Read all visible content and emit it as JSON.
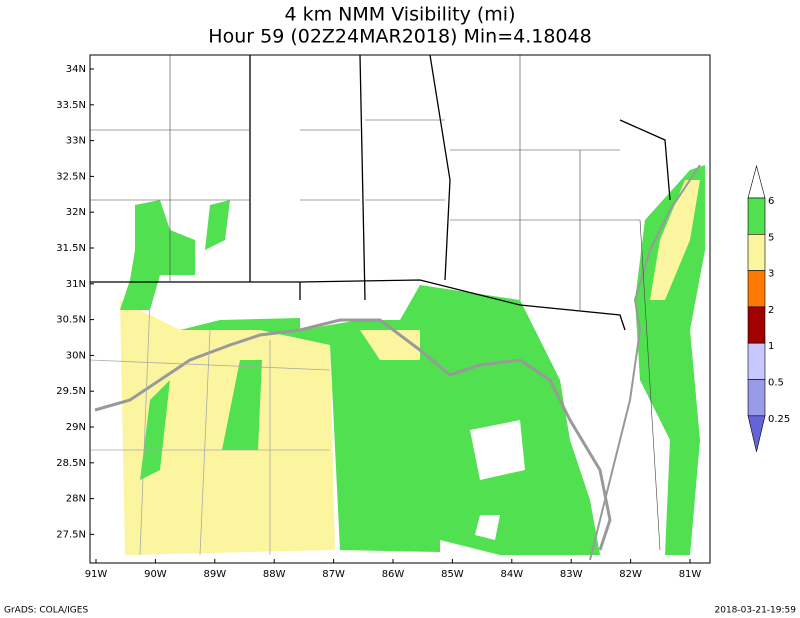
{
  "header": {
    "title": "4 km NMM Visibility (mi)",
    "subtitle": "Hour 59 (02Z24MAR2018) Min=4.18048"
  },
  "map": {
    "lat_labels": [
      "34N",
      "33.5N",
      "33N",
      "32.5N",
      "32N",
      "31.5N",
      "31N",
      "30.5N",
      "30N",
      "29.5N",
      "29N",
      "28.5N",
      "28N",
      "27.5N"
    ],
    "lon_labels": [
      "91W",
      "90W",
      "89W",
      "88W",
      "87W",
      "86W",
      "85W",
      "84W",
      "83W",
      "82W",
      "81W"
    ]
  },
  "legend": {
    "entries": [
      {
        "label": "6",
        "color": "#50e050"
      },
      {
        "label": "5",
        "color": "#fbf5a0"
      },
      {
        "label": "3",
        "color": "#ff7800"
      },
      {
        "label": "2",
        "color": "#a00000"
      },
      {
        "label": "1",
        "color": "#c8c8ff"
      },
      {
        "label": "0.5",
        "color": "#9a9aeb"
      },
      {
        "label": "0.25",
        "color": "#6464d8"
      }
    ]
  },
  "footer": {
    "left": "GrADS: COLA/IGES",
    "right": "2018-03-21-19:59"
  }
}
